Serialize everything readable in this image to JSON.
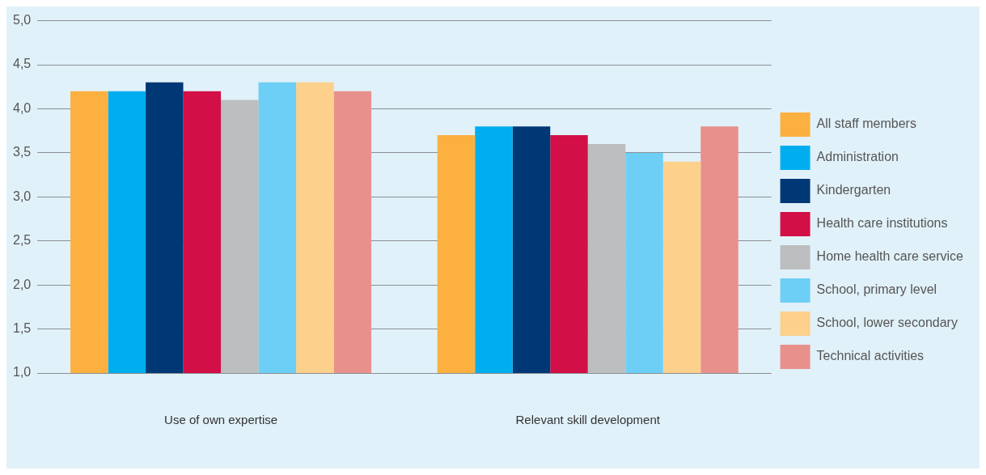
{
  "chart_data": {
    "type": "bar",
    "categories": [
      "Use of own expertise",
      "Relevant skill development"
    ],
    "series": [
      {
        "name": "All staff members",
        "color": "#fbb040",
        "values": [
          4.2,
          3.7
        ]
      },
      {
        "name": "Administration",
        "color": "#00aeef",
        "values": [
          4.2,
          3.8
        ]
      },
      {
        "name": "Kindergarten",
        "color": "#003876",
        "values": [
          4.3,
          3.8
        ]
      },
      {
        "name": "Health care institutions",
        "color": "#d20f46",
        "values": [
          4.2,
          3.7
        ]
      },
      {
        "name": "Home health care service",
        "color": "#bcbec0",
        "values": [
          4.1,
          3.6
        ]
      },
      {
        "name": "School, primary level",
        "color": "#6dcff6",
        "values": [
          4.3,
          3.5
        ]
      },
      {
        "name": "School, lower secondary",
        "color": "#fdd08c",
        "values": [
          4.3,
          3.4
        ]
      },
      {
        "name": "Technical activities",
        "color": "#e8908c",
        "values": [
          4.2,
          3.8
        ]
      }
    ],
    "ylim": [
      1,
      5
    ],
    "yticks": [
      {
        "value": 1,
        "label": "1,0"
      },
      {
        "value": 1.5,
        "label": "1,5"
      },
      {
        "value": 2,
        "label": "2,0"
      },
      {
        "value": 2.5,
        "label": "2,5"
      },
      {
        "value": 3,
        "label": "3,0"
      },
      {
        "value": 3.5,
        "label": "3,5"
      },
      {
        "value": 4,
        "label": "4,0"
      },
      {
        "value": 4.5,
        "label": "4,5"
      },
      {
        "value": 5,
        "label": "5,0"
      }
    ],
    "grid": "y",
    "legend": "right"
  }
}
